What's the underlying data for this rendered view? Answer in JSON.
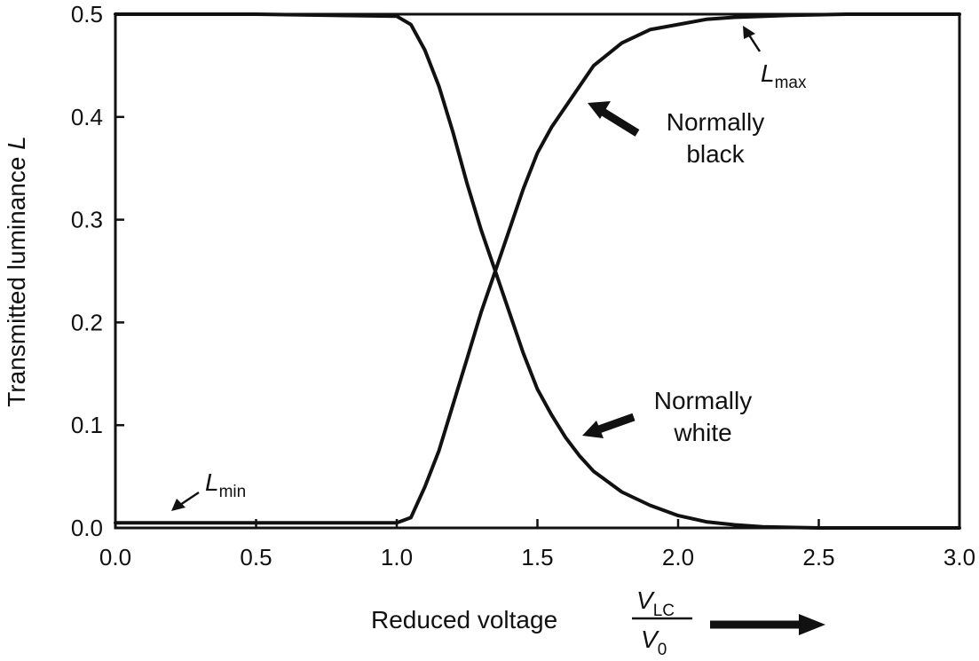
{
  "chart_data": {
    "type": "line",
    "xlabel": "Reduced voltage",
    "ylabel": "Transmitted luminance",
    "ylabel_var": "L",
    "xlabel_fraction": {
      "num_var": "V",
      "num_sub": "LC",
      "den_var": "V",
      "den_sub": "0"
    },
    "xlim": [
      0,
      3.0
    ],
    "ylim": [
      0,
      0.5
    ],
    "x_ticks": [
      "0.0",
      "0.5",
      "1.0",
      "1.5",
      "2.0",
      "2.5",
      "3.0"
    ],
    "y_ticks": [
      "0.0",
      "0.1",
      "0.2",
      "0.3",
      "0.4",
      "0.5"
    ],
    "grid": false,
    "series": [
      {
        "name": "Normally black",
        "x": [
          0.0,
          0.5,
          1.0,
          1.05,
          1.1,
          1.15,
          1.2,
          1.25,
          1.3,
          1.35,
          1.4,
          1.45,
          1.5,
          1.55,
          1.6,
          1.65,
          1.7,
          1.8,
          1.9,
          2.0,
          2.1,
          2.2,
          2.4,
          2.6,
          2.8,
          3.0
        ],
        "y": [
          0.005,
          0.005,
          0.005,
          0.01,
          0.04,
          0.075,
          0.12,
          0.165,
          0.21,
          0.25,
          0.29,
          0.33,
          0.365,
          0.39,
          0.41,
          0.43,
          0.45,
          0.472,
          0.485,
          0.49,
          0.495,
          0.497,
          0.499,
          0.5,
          0.5,
          0.5
        ]
      },
      {
        "name": "Normally white",
        "x": [
          0.0,
          0.5,
          1.0,
          1.05,
          1.1,
          1.15,
          1.2,
          1.25,
          1.3,
          1.35,
          1.4,
          1.45,
          1.5,
          1.55,
          1.6,
          1.65,
          1.7,
          1.8,
          1.9,
          2.0,
          2.1,
          2.2,
          2.3,
          2.5,
          2.8,
          3.0
        ],
        "y": [
          0.5,
          0.5,
          0.498,
          0.49,
          0.465,
          0.43,
          0.385,
          0.335,
          0.29,
          0.25,
          0.21,
          0.17,
          0.135,
          0.11,
          0.088,
          0.07,
          0.055,
          0.035,
          0.022,
          0.012,
          0.006,
          0.003,
          0.001,
          0.0,
          0.0,
          0.0
        ]
      }
    ],
    "annotations": [
      {
        "text_var": "L",
        "text_sub": "max"
      },
      {
        "text": "Normally black"
      },
      {
        "text": "Normally white"
      },
      {
        "text_var": "L",
        "text_sub": "min"
      }
    ]
  }
}
